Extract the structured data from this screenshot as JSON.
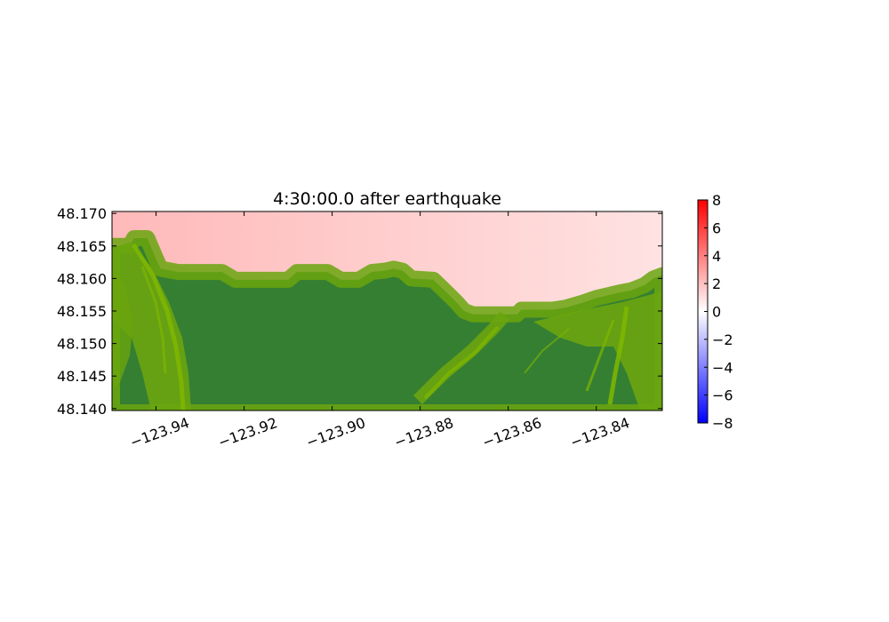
{
  "chart_data": {
    "type": "heatmap",
    "title": "4:30:00.0 after earthquake",
    "xlabel": "",
    "ylabel": "",
    "xlim": [
      -123.95,
      -123.825
    ],
    "ylim": [
      48.1397,
      48.1703
    ],
    "x_ticks": [
      -123.94,
      -123.92,
      -123.9,
      -123.88,
      -123.86,
      -123.84
    ],
    "x_tick_labels": [
      "−123.94",
      "−123.92",
      "−123.90",
      "−123.88",
      "−123.86",
      "−123.84"
    ],
    "y_ticks": [
      48.17,
      48.165,
      48.16,
      48.155,
      48.15,
      48.145,
      48.14
    ],
    "y_tick_labels": [
      "48.170",
      "48.165",
      "48.160",
      "48.155",
      "48.150",
      "48.145",
      "48.140"
    ],
    "colorbar": {
      "range": [
        -8,
        8
      ],
      "ticks": [
        8,
        6,
        4,
        2,
        0,
        -2,
        -4,
        -6,
        -8
      ],
      "tick_labels": [
        "8",
        "6",
        "4",
        "2",
        "0",
        "−2",
        "−4",
        "−6",
        "−8"
      ],
      "colors": {
        "low": "#0000ff",
        "mid": "#ffffff",
        "high": "#ff0000"
      }
    },
    "water_surface": {
      "west_value": 2.2,
      "east_value": 0.9
    },
    "shoreline": [
      [
        -123.95,
        48.165
      ],
      [
        -123.946,
        48.165
      ],
      [
        -123.945,
        48.1662
      ],
      [
        -123.942,
        48.1662
      ],
      [
        -123.94,
        48.163
      ],
      [
        -123.939,
        48.1615
      ],
      [
        -123.935,
        48.161
      ],
      [
        -123.925,
        48.161
      ],
      [
        -123.922,
        48.1598
      ],
      [
        -123.91,
        48.1598
      ],
      [
        -123.908,
        48.161
      ],
      [
        -123.901,
        48.161
      ],
      [
        -123.898,
        48.1598
      ],
      [
        -123.894,
        48.1598
      ],
      [
        -123.891,
        48.161
      ],
      [
        -123.888,
        48.1612
      ],
      [
        -123.886,
        48.1615
      ],
      [
        -123.884,
        48.1612
      ],
      [
        -123.882,
        48.16
      ],
      [
        -123.877,
        48.1598
      ],
      [
        -123.875,
        48.1585
      ],
      [
        -123.872,
        48.1565
      ],
      [
        -123.87,
        48.155
      ],
      [
        -123.868,
        48.1545
      ],
      [
        -123.858,
        48.1545
      ],
      [
        -123.857,
        48.1552
      ],
      [
        -123.85,
        48.1552
      ],
      [
        -123.847,
        48.1555
      ],
      [
        -123.843,
        48.1563
      ],
      [
        -123.84,
        48.157
      ],
      [
        -123.835,
        48.1578
      ],
      [
        -123.832,
        48.1582
      ],
      [
        -123.829,
        48.159
      ],
      [
        -123.827,
        48.16
      ],
      [
        -123.825,
        48.1605
      ]
    ],
    "land_colors": {
      "lowland": "#357f33",
      "hillside": "#6aa50e",
      "ridge": "#7fb700"
    }
  }
}
